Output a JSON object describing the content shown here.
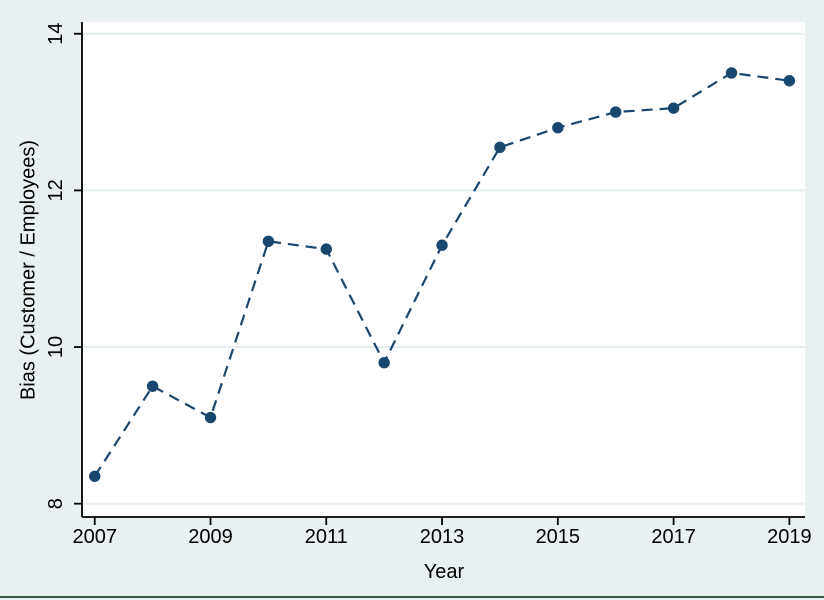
{
  "chart_data": {
    "type": "line",
    "title": "",
    "xlabel": "Year",
    "ylabel": "Bias (Customer / Employees)",
    "x": [
      2007,
      2008,
      2009,
      2010,
      2011,
      2012,
      2013,
      2014,
      2015,
      2016,
      2017,
      2018,
      2019
    ],
    "series": [
      {
        "name": "Bias (Customer / Employees)",
        "values": [
          8.35,
          9.5,
          9.1,
          11.35,
          11.25,
          9.8,
          11.3,
          12.55,
          12.8,
          13.0,
          13.05,
          13.5,
          13.4
        ]
      }
    ],
    "x_ticks": [
      2007,
      2009,
      2011,
      2013,
      2015,
      2017,
      2019
    ],
    "y_ticks": [
      8,
      10,
      12,
      14
    ],
    "xlim": [
      2006.78,
      2019.27
    ],
    "ylim": [
      7.83,
      14.15
    ],
    "grid": true,
    "legend_position": "none",
    "line_style": "dashed",
    "marker": "filled-circle"
  },
  "colors": {
    "line_and_marker": "#1a476f",
    "figure_background": "#e9f0f1",
    "plot_background": "#ffffff",
    "gridline": "#e4eeee",
    "axis": "#000000",
    "tick_text": "#000000",
    "bottom_border": "#3a5c44"
  }
}
